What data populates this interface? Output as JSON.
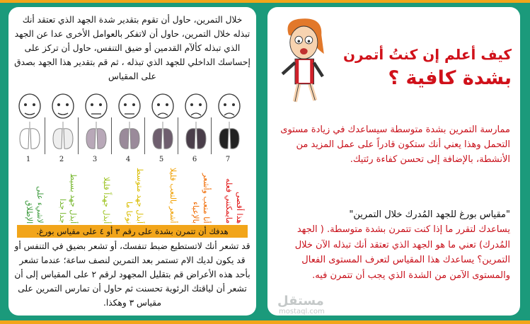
{
  "left_panel": {
    "intro": "خلال التمرين، حاول أن تقوم بتقدير شدة الجهد الذي تعتقد أنك تبذله خلال التمرين، حاول أن لاتفكر بالعوامل الأخرى عدا عن الجهد الذي تبذله كألآم القدمين أو ضيق التنفس، حاول أن تركز على إحساسك الداخلي للجهد الذي تبذله ، ثم قم بتقدير هذا الجهد بصدق على المقياس",
    "scale": [
      {
        "number": "1",
        "label": "لاشيء على الإطلاق",
        "color": "#3c9a3c"
      },
      {
        "number": "2",
        "label": "أبذل جهد بسيط جدا جدا",
        "color": "#74b52a"
      },
      {
        "number": "3",
        "label": "أبذل جهداً قليلا",
        "color": "#9cc21e"
      },
      {
        "number": "4",
        "label": "أبذل جهد متوسط نوعا ما",
        "color": "#d9bc00"
      },
      {
        "number": "5",
        "label": "أشعر بالتعب قليلا",
        "color": "#f0a000"
      },
      {
        "number": "6",
        "label": "أنا متعب وأشعر بالإعياء",
        "color": "#f06a00"
      },
      {
        "number": "7",
        "label": "هذا أقصى مايمكنني فعله",
        "color": "#e01010"
      }
    ],
    "goal": "هدفك أن تتمرن بشدة على رقم ٣ أو ٤ على مقياس بورغ.",
    "warning": "قد تشعر أنك لاتستطيع ضبط تنفسك، أو تشعر بضيق في التنفس أو قد يكون لديك الام تستمر بعد التمرين لنصف ساعة؛ عندما تشعر بأحد هذه الأعراض قم بتقليل المجهود لرقم ٢ على المقياس إلى أن تشعر أن لياقتك الرئوية تحسنت ثم حاول أن تمارس التمرين على مقياس ٣ وهكذا."
  },
  "right_panel": {
    "title_line1": "كيف أعلم إن كنتُ أتمرن",
    "title_line2": "بشدة كافية ؟",
    "para1": "ممارسة التمرين بشدة متوسطة سيساعدك في زيادة مستوى التحمل وهذا يعني أنك ستكون قادراً على عمل المزيد من الأنشطة، بالإضافة إلى تحسن كفاءة رئتيك.",
    "borg_title": "\"مقياس بورغ للجهد المُدرك خلال التمرين\"",
    "para2": "يساعدك لتقرر ما إذا كنت تتمرن بشدة متوسطة. ( الجهد المُدرك) تعني ما هو الجهد الذي تعتقد أنك تبذله الآن خلال التمرين؟ يساعدك هذا المقياس لتعرف المستوى الفعال والمستوى الآمن من الشدة الذي يجب أن تتمرن فيه."
  },
  "watermark": {
    "text": "مستقل",
    "sub": "mostaql.com"
  },
  "colors": {
    "frame": "#1b9a7b",
    "border": "#f2a51a",
    "accent_red": "#d0111a"
  }
}
